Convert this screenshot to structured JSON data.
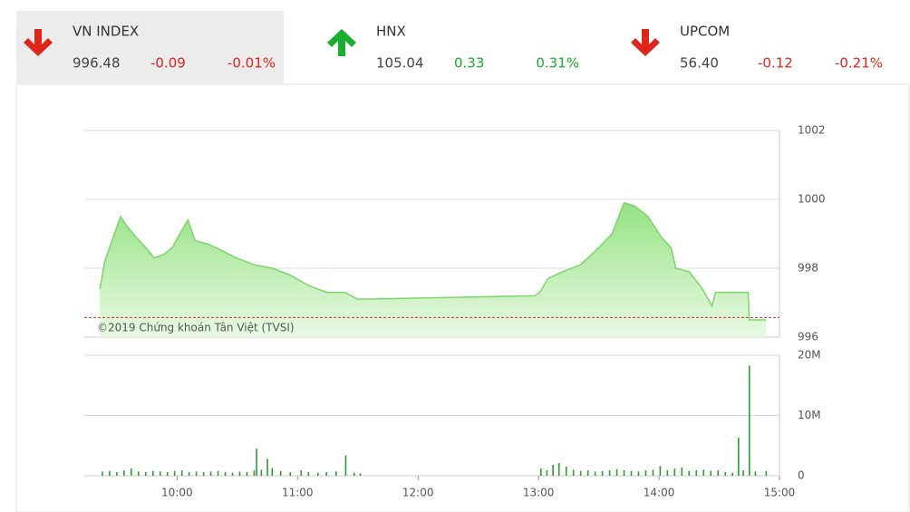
{
  "tickers": [
    {
      "name": "VN INDEX",
      "value": "996.48",
      "change": "-0.09",
      "percent": "-0.01%",
      "direction": "down"
    },
    {
      "name": "HNX",
      "value": "105.04",
      "change": "0.33",
      "percent": "0.31%",
      "direction": "up"
    },
    {
      "name": "UPCOM",
      "value": "56.40",
      "change": "-0.12",
      "percent": "-0.21%",
      "direction": "down"
    }
  ],
  "watermark": "©2019 Chứng khoán Tân Việt (TVSI)",
  "chart_data": [
    {
      "type": "area",
      "x": [
        9.36,
        9.4,
        9.47,
        9.53,
        9.59,
        9.66,
        9.74,
        9.81,
        9.89,
        9.96,
        10.04,
        10.09,
        10.15,
        10.26,
        10.38,
        10.49,
        10.64,
        10.79,
        10.94,
        11.09,
        11.24,
        11.39,
        11.5,
        12.97,
        13.01,
        13.08,
        13.2,
        13.35,
        13.5,
        13.61,
        13.71,
        13.8,
        13.91,
        14.02,
        14.1,
        14.14,
        14.25,
        14.36,
        14.44,
        14.47,
        14.74,
        14.75,
        14.89
      ],
      "values": [
        997.4,
        998.2,
        998.9,
        999.5,
        999.2,
        998.9,
        998.6,
        998.3,
        998.4,
        998.6,
        999.1,
        999.4,
        998.8,
        998.7,
        998.5,
        998.3,
        998.1,
        998.0,
        997.8,
        997.5,
        997.3,
        997.3,
        997.1,
        997.2,
        997.3,
        997.7,
        997.9,
        998.1,
        998.6,
        999.0,
        999.9,
        999.8,
        999.5,
        998.9,
        998.6,
        998.0,
        997.9,
        997.4,
        996.9,
        997.3,
        997.3,
        996.5,
        996.5
      ],
      "color": "#7ad66a",
      "reference": 996.57,
      "reference_color": "#d9302c",
      "xlim": [
        9.23,
        15
      ],
      "ylim": [
        996,
        1002
      ],
      "yticks": [
        996,
        998,
        1000,
        1002
      ],
      "grid": true
    },
    {
      "type": "bar",
      "x": [
        9.38,
        9.44,
        9.5,
        9.56,
        9.62,
        9.68,
        9.74,
        9.8,
        9.86,
        9.92,
        9.98,
        10.04,
        10.1,
        10.16,
        10.22,
        10.28,
        10.34,
        10.4,
        10.46,
        10.52,
        10.58,
        10.64,
        10.66,
        10.7,
        10.75,
        10.79,
        10.86,
        10.94,
        11.03,
        11.09,
        11.17,
        11.24,
        11.32,
        11.4,
        11.47,
        11.52,
        13.02,
        13.07,
        13.12,
        13.17,
        13.23,
        13.29,
        13.35,
        13.41,
        13.47,
        13.53,
        13.59,
        13.65,
        13.71,
        13.77,
        13.83,
        13.89,
        13.95,
        14.01,
        14.07,
        14.13,
        14.19,
        14.25,
        14.31,
        14.37,
        14.43,
        14.49,
        14.55,
        14.61,
        14.66,
        14.7,
        14.75,
        14.8,
        14.89
      ],
      "values": [
        700000,
        800000,
        600000,
        900000,
        1200000,
        700000,
        600000,
        800000,
        700000,
        600000,
        800000,
        900000,
        600000,
        700000,
        600000,
        700000,
        800000,
        600000,
        500000,
        700000,
        600000,
        900000,
        4500000,
        1000000,
        2800000,
        1300000,
        800000,
        600000,
        900000,
        600000,
        500000,
        600000,
        700000,
        3400000,
        500000,
        400000,
        1200000,
        900000,
        1800000,
        2100000,
        1500000,
        1000000,
        800000,
        900000,
        700000,
        800000,
        900000,
        1100000,
        900000,
        800000,
        700000,
        900000,
        1000000,
        1600000,
        900000,
        1200000,
        1400000,
        800000,
        900000,
        1000000,
        800000,
        900000,
        600000,
        500000,
        6300000,
        900000,
        18300000,
        700000,
        800000
      ],
      "color": "#2f9a2f",
      "xlim": [
        9.23,
        15
      ],
      "ylim": [
        0,
        20000000
      ],
      "yticks": [
        0,
        {
          "value": 10000000,
          "label": "10M"
        },
        {
          "value": 20000000,
          "label": "20M"
        }
      ],
      "xticks": [
        {
          "value": 10,
          "label": "10:00"
        },
        {
          "value": 11,
          "label": "11:00"
        },
        {
          "value": 12,
          "label": "12:00"
        },
        {
          "value": 13,
          "label": "13:00"
        },
        {
          "value": 14,
          "label": "14:00"
        },
        {
          "value": 15,
          "label": "15:00"
        }
      ],
      "grid": true
    }
  ]
}
